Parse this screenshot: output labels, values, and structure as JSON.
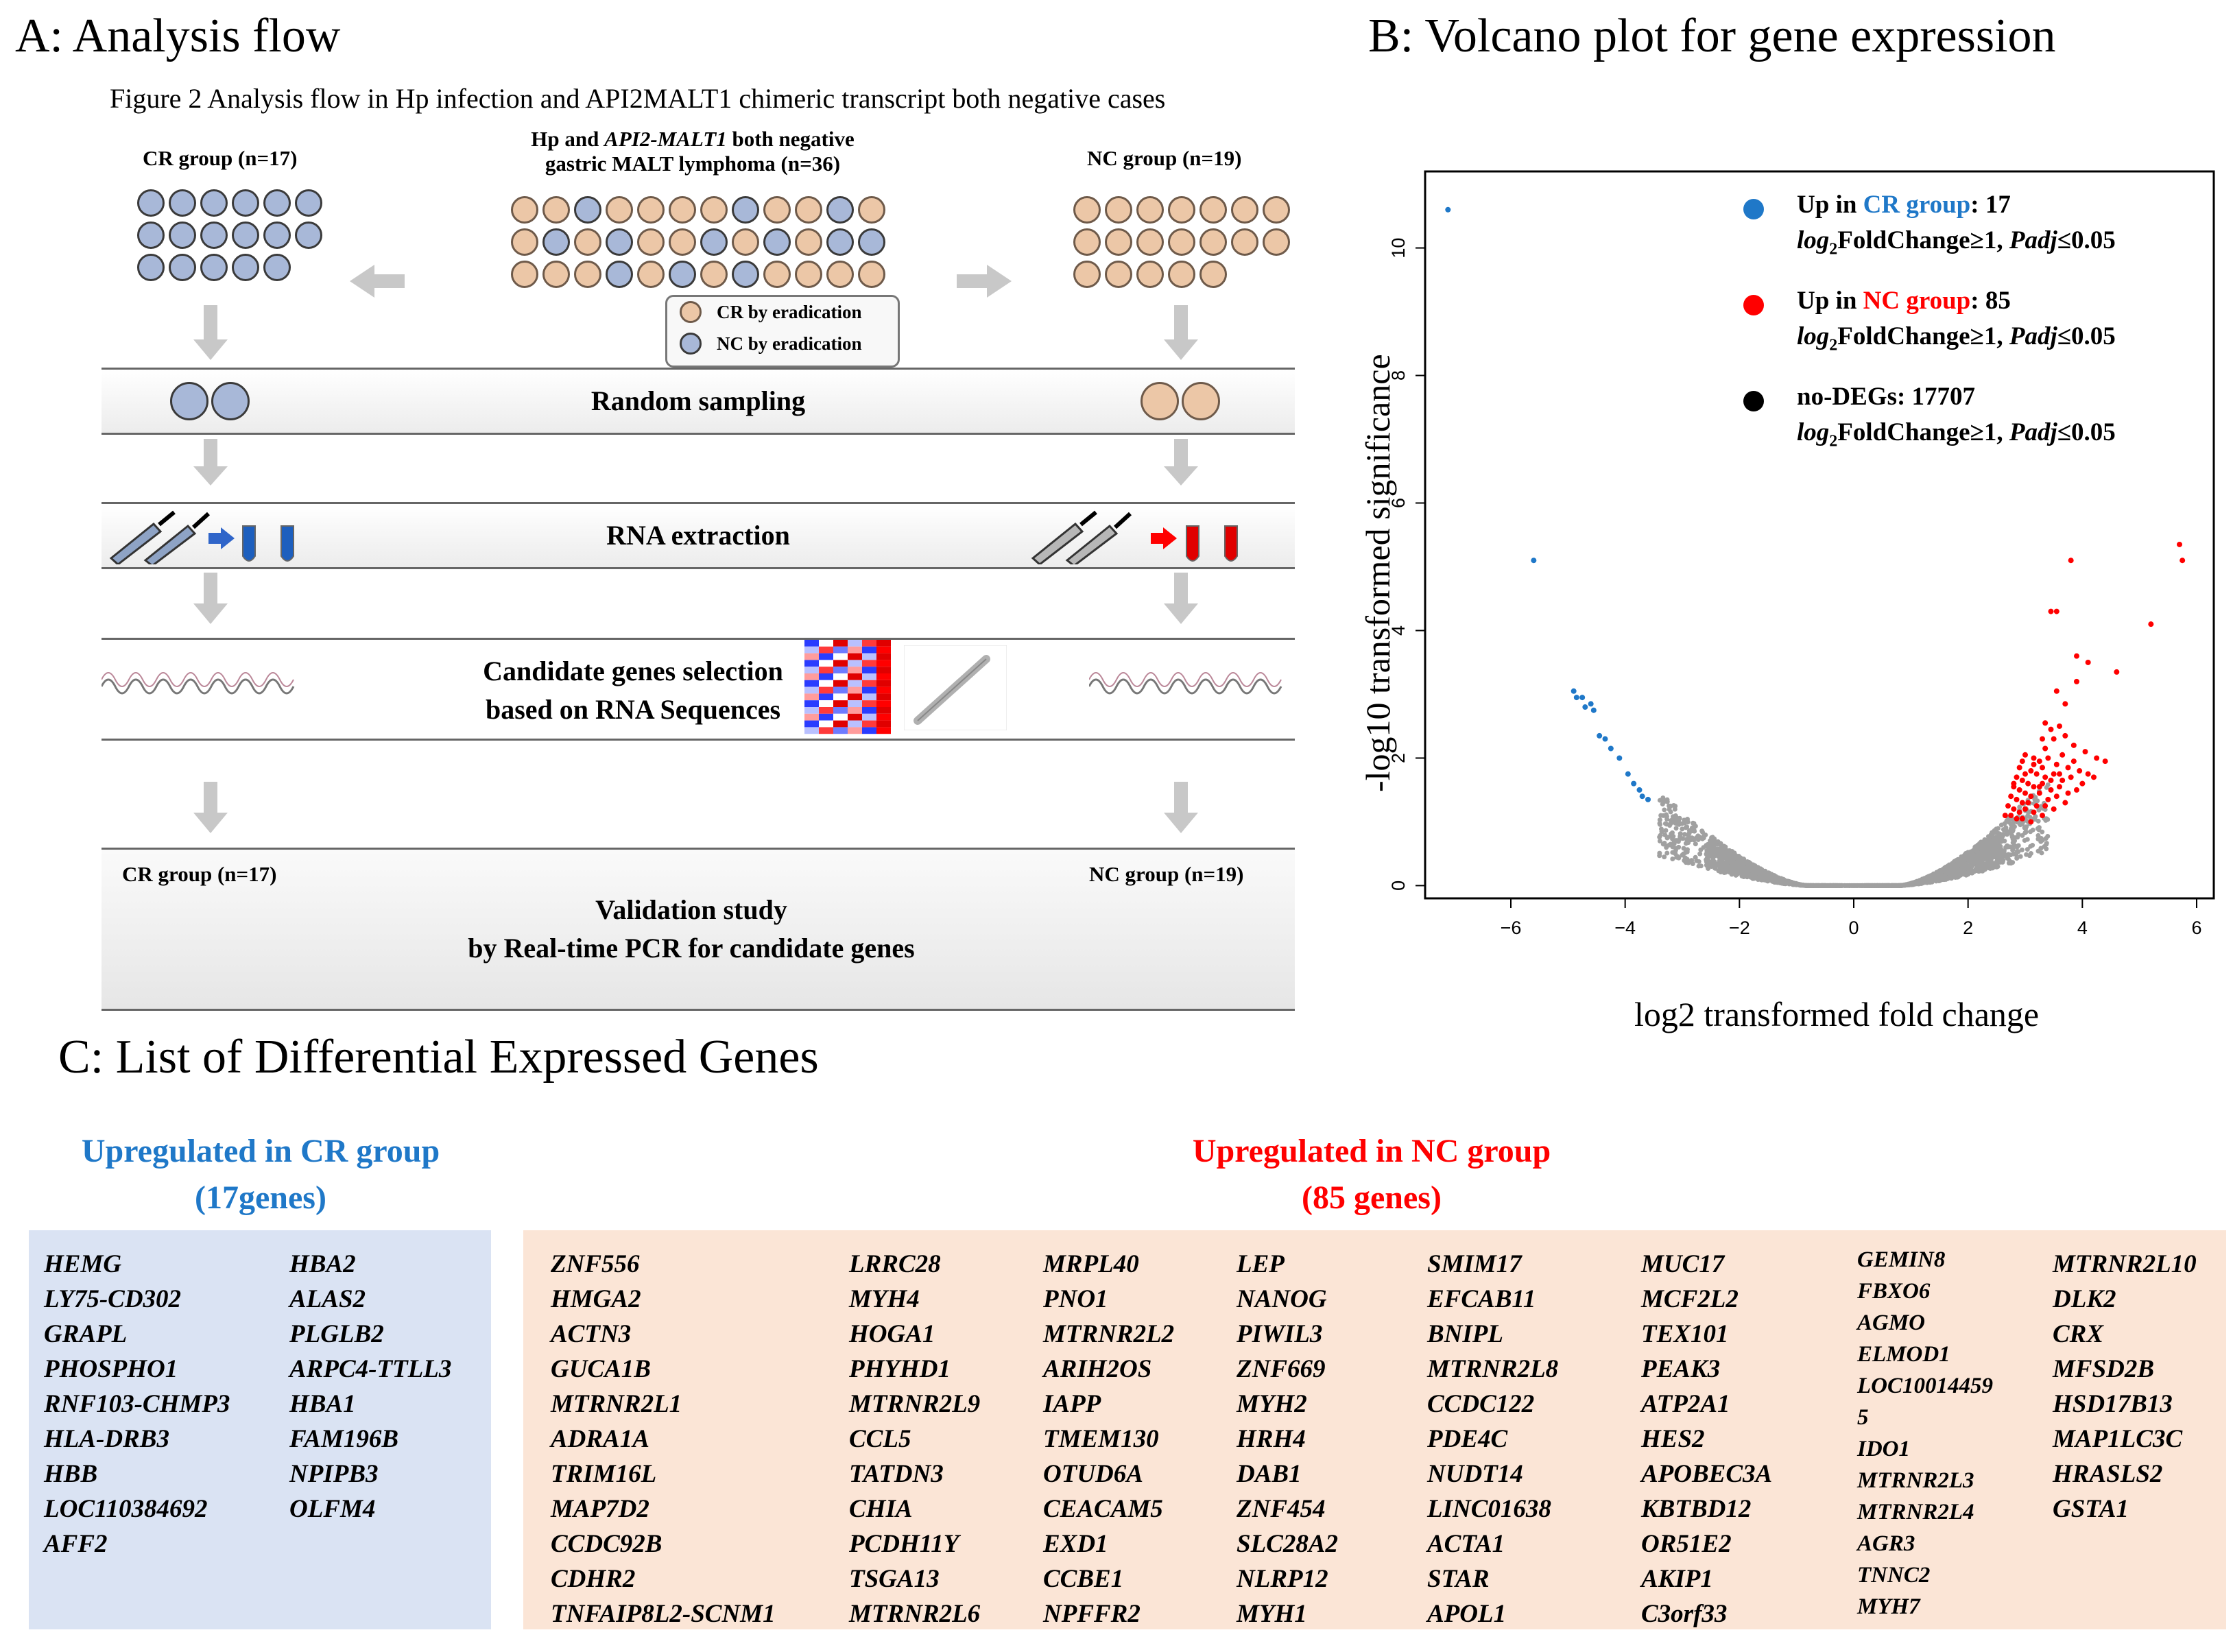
{
  "panelA": {
    "title": "A: Analysis flow",
    "caption": "Figure 2 Analysis  flow  in  Hp infection  and API2MALT1 chimeric transcript both negative cases",
    "cr_group_top": "CR group (n=17)",
    "nc_group_top": "NC group (n=19)",
    "center_label_1a": "Hp and ",
    "center_label_1b": "API2-MALT1",
    "center_label_1c": " both negative",
    "center_label_2": "gastric MALT lymphoma (n=36)",
    "legend_cr": "CR by eradication",
    "legend_nc": "NC by eradication",
    "step_random": "Random sampling",
    "step_rna": "RNA extraction",
    "step_candidate_1": "Candidate genes selection",
    "step_candidate_2": "based on RNA Sequences",
    "cr_group_bottom": "CR group (n=17)",
    "nc_group_bottom": "NC group (n=19)",
    "validation_1": "Validation  study",
    "validation_2": "by Real-time  PCR for candidate genes"
  },
  "panelB": {
    "title": "B: Volcano plot for gene expression"
  },
  "chart_data": {
    "type": "scatter",
    "title": "",
    "xlabel": "log2 transformed fold change",
    "ylabel": "-log10  transformed significance",
    "xlim": [
      -7.5,
      6.3
    ],
    "ylim": [
      -0.2,
      11.2
    ],
    "xticks": [
      -6,
      -4,
      -2,
      0,
      2,
      4,
      6
    ],
    "yticks": [
      0,
      2,
      4,
      6,
      8,
      10
    ],
    "legend": [
      {
        "color": "#1f78c8",
        "prefix": "Up in ",
        "group": "CR group",
        "suffix": ": 17",
        "criteria_a": "log",
        "criteria_sub": "2",
        "criteria_b": "FoldChange≥1, ",
        "criteria_c": "Padj",
        "criteria_d": "≤0.05"
      },
      {
        "color": "#ff0000",
        "prefix": "Up in ",
        "group": "NC group",
        "suffix": ": 85",
        "criteria_a": "log",
        "criteria_sub": "2",
        "criteria_b": "FoldChange≥1, ",
        "criteria_c": "Padj",
        "criteria_d": "≤0.05"
      },
      {
        "color": "#000000",
        "prefix": "no-DEGs",
        "group": "",
        "suffix": ": 17707",
        "criteria_a": "log",
        "criteria_sub": "2",
        "criteria_b": "FoldChange≥1, ",
        "criteria_c": "Padj",
        "criteria_d": "≤0.05"
      }
    ],
    "series": [
      {
        "name": "Up in CR group",
        "color": "#1f78c8",
        "points": [
          [
            -7.1,
            10.6
          ],
          [
            -5.6,
            5.1
          ],
          [
            -4.9,
            3.05
          ],
          [
            -4.85,
            2.95
          ],
          [
            -4.75,
            2.95
          ],
          [
            -4.7,
            2.8
          ],
          [
            -4.6,
            2.85
          ],
          [
            -4.55,
            2.75
          ],
          [
            -4.45,
            2.35
          ],
          [
            -4.35,
            2.3
          ],
          [
            -4.25,
            2.15
          ],
          [
            -4.1,
            2.0
          ],
          [
            -3.95,
            1.75
          ],
          [
            -3.85,
            1.6
          ],
          [
            -3.75,
            1.5
          ],
          [
            -3.7,
            1.4
          ],
          [
            -3.6,
            1.35
          ]
        ]
      },
      {
        "name": "Up in NC group",
        "color": "#ff0000",
        "points": [
          [
            3.8,
            5.1
          ],
          [
            5.7,
            5.35
          ],
          [
            5.75,
            5.1
          ],
          [
            5.2,
            4.1
          ],
          [
            3.45,
            4.3
          ],
          [
            3.55,
            4.3
          ],
          [
            4.1,
            3.5
          ],
          [
            3.9,
            3.6
          ],
          [
            4.6,
            3.35
          ],
          [
            3.55,
            3.05
          ],
          [
            3.9,
            3.2
          ],
          [
            3.7,
            2.85
          ],
          [
            3.35,
            2.55
          ],
          [
            3.45,
            2.45
          ],
          [
            3.6,
            2.5
          ],
          [
            3.3,
            2.3
          ],
          [
            3.5,
            2.3
          ],
          [
            3.7,
            2.35
          ],
          [
            3.85,
            2.2
          ],
          [
            4.05,
            2.1
          ],
          [
            4.25,
            2.0
          ],
          [
            4.4,
            1.95
          ],
          [
            3.0,
            2.05
          ],
          [
            3.15,
            2.0
          ],
          [
            3.25,
            1.95
          ],
          [
            3.4,
            2.0
          ],
          [
            3.55,
            1.9
          ],
          [
            3.75,
            1.85
          ],
          [
            3.95,
            1.8
          ],
          [
            4.1,
            1.75
          ],
          [
            2.9,
            1.85
          ],
          [
            3.1,
            1.8
          ],
          [
            3.2,
            1.75
          ],
          [
            3.35,
            1.7
          ],
          [
            3.5,
            1.75
          ],
          [
            3.65,
            1.65
          ],
          [
            3.8,
            1.7
          ],
          [
            4.0,
            1.6
          ],
          [
            2.85,
            1.7
          ],
          [
            2.95,
            1.65
          ],
          [
            3.05,
            1.6
          ],
          [
            3.15,
            1.55
          ],
          [
            3.3,
            1.6
          ],
          [
            3.45,
            1.5
          ],
          [
            3.6,
            1.55
          ],
          [
            3.75,
            1.45
          ],
          [
            3.9,
            1.5
          ],
          [
            2.8,
            1.55
          ],
          [
            2.9,
            1.5
          ],
          [
            3.0,
            1.45
          ],
          [
            3.1,
            1.4
          ],
          [
            3.25,
            1.45
          ],
          [
            3.4,
            1.35
          ],
          [
            3.55,
            1.4
          ],
          [
            3.7,
            1.3
          ],
          [
            2.75,
            1.4
          ],
          [
            2.85,
            1.35
          ],
          [
            2.95,
            1.3
          ],
          [
            3.05,
            1.3
          ],
          [
            3.2,
            1.25
          ],
          [
            3.35,
            1.25
          ],
          [
            3.5,
            1.2
          ],
          [
            2.7,
            1.25
          ],
          [
            2.8,
            1.2
          ],
          [
            2.9,
            1.15
          ],
          [
            3.0,
            1.2
          ],
          [
            3.15,
            1.15
          ],
          [
            3.3,
            1.1
          ],
          [
            2.65,
            1.1
          ],
          [
            2.75,
            1.1
          ],
          [
            2.85,
            1.05
          ],
          [
            2.95,
            1.05
          ],
          [
            3.1,
            1.0
          ],
          [
            3.25,
            1.55
          ],
          [
            3.45,
            1.65
          ],
          [
            3.6,
            1.75
          ],
          [
            3.15,
            1.9
          ],
          [
            2.95,
            1.95
          ],
          [
            3.35,
            2.15
          ],
          [
            3.65,
            2.05
          ],
          [
            3.85,
            1.95
          ],
          [
            4.2,
            1.7
          ],
          [
            3.0,
            1.75
          ],
          [
            3.3,
            1.85
          ],
          [
            2.8,
            1.6
          ]
        ]
      },
      {
        "name": "no-DEGs",
        "color": "#a0a0a0",
        "generated": "gray distribution"
      }
    ]
  },
  "panelC": {
    "title": "C: List of Differential Expressed Genes",
    "cr_head_1": "Upregulated in CR group",
    "cr_head_2": "(17genes)",
    "nc_head_1": "Upregulated in NC group",
    "nc_head_2": "(85 genes)",
    "cr_col1": [
      "HEMG",
      "LY75-CD302",
      "GRAPL",
      "PHOSPHO1",
      "RNF103-CHMP3",
      "HLA-DRB3",
      "HBB",
      "LOC110384692",
      "AFF2"
    ],
    "cr_col2": [
      "HBA2",
      "ALAS2",
      "PLGLB2",
      "ARPC4-TTLL3",
      "HBA1",
      "FAM196B",
      "NPIPB3",
      "OLFM4"
    ],
    "nc_col1": [
      "ZNF556",
      "HMGA2",
      "ACTN3",
      "GUCA1B",
      "MTRNR2L1",
      "ADRA1A",
      "TRIM16L",
      "MAP7D2",
      "CCDC92B",
      "CDHR2",
      "TNFAIP8L2-SCNM1"
    ],
    "nc_col2": [
      "LRRC28",
      "MYH4",
      "HOGA1",
      "PHYHD1",
      "MTRNR2L9",
      "CCL5",
      "TATDN3",
      "CHIA",
      "PCDH11Y",
      "TSGA13",
      "MTRNR2L6"
    ],
    "nc_col3": [
      "MRPL40",
      "PNO1",
      "MTRNR2L2",
      "ARIH2OS",
      "IAPP",
      "TMEM130",
      "OTUD6A",
      "CEACAM5",
      "EXD1",
      "CCBE1",
      "NPFFR2"
    ],
    "nc_col4": [
      "LEP",
      "NANOG",
      "PIWIL3",
      "ZNF669",
      "MYH2",
      "HRH4",
      "DAB1",
      "ZNF454",
      "SLC28A2",
      "NLRP12",
      "MYH1"
    ],
    "nc_col5": [
      "SMIM17",
      "EFCAB11",
      "BNIPL",
      "MTRNR2L8",
      "CCDC122",
      "PDE4C",
      "NUDT14",
      "LINC01638",
      "ACTA1",
      "STAR",
      "APOL1"
    ],
    "nc_col6": [
      "MUC17",
      "MCF2L2",
      "TEX101",
      "PEAK3",
      "ATP2A1",
      "HES2",
      "APOBEC3A",
      "KBTBD12",
      "OR51E2",
      "AKIP1",
      "C3orf33"
    ],
    "nc_col7": [
      "GEMIN8",
      "FBXO6",
      "AGMO",
      "ELMOD1",
      "LOC10014459",
      "5",
      "IDO1",
      "MTRNR2L3",
      "MTRNR2L4",
      "AGR3",
      "TNNC2",
      "MYH7"
    ],
    "nc_col8": [
      "MTRNR2L10",
      "DLK2",
      "CRX",
      "MFSD2B",
      "HSD17B13",
      "MAP1LC3C",
      "HRASLS2",
      "GSTA1"
    ]
  },
  "colors": {
    "blue_text": "#1f78c8",
    "red_text": "#ff0000",
    "cr_box": "#dae3f3",
    "nc_box": "#fbe5d6"
  }
}
